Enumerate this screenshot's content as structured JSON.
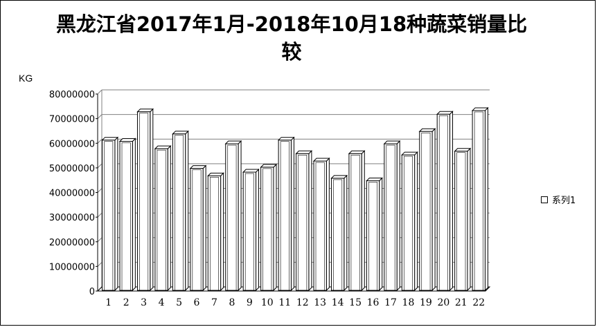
{
  "chart_data": {
    "type": "bar",
    "title": "黑龙江省2017年1月-2018年10月18种蔬菜销量比较",
    "ylabel": "KG",
    "xlabel": "",
    "categories": [
      "1",
      "2",
      "3",
      "4",
      "5",
      "6",
      "7",
      "8",
      "9",
      "10",
      "11",
      "12",
      "13",
      "14",
      "15",
      "16",
      "17",
      "18",
      "19",
      "20",
      "21",
      "22"
    ],
    "series": [
      {
        "name": "系列1",
        "values": [
          61000000,
          60500000,
          72500000,
          57500000,
          63500000,
          49500000,
          46500000,
          59500000,
          48000000,
          50000000,
          61000000,
          55500000,
          52500000,
          45500000,
          55500000,
          44500000,
          59500000,
          55000000,
          64500000,
          71500000,
          56500000,
          73000000
        ]
      }
    ],
    "ylim": [
      0,
      80000000
    ],
    "yticks": [
      "0",
      "10000000",
      "20000000",
      "30000000",
      "40000000",
      "50000000",
      "60000000",
      "70000000",
      "80000000"
    ],
    "grid": true,
    "legend_position": "right",
    "style": "3d-column",
    "bar_fill": "#ffffff",
    "bar_stroke": "#000000"
  }
}
